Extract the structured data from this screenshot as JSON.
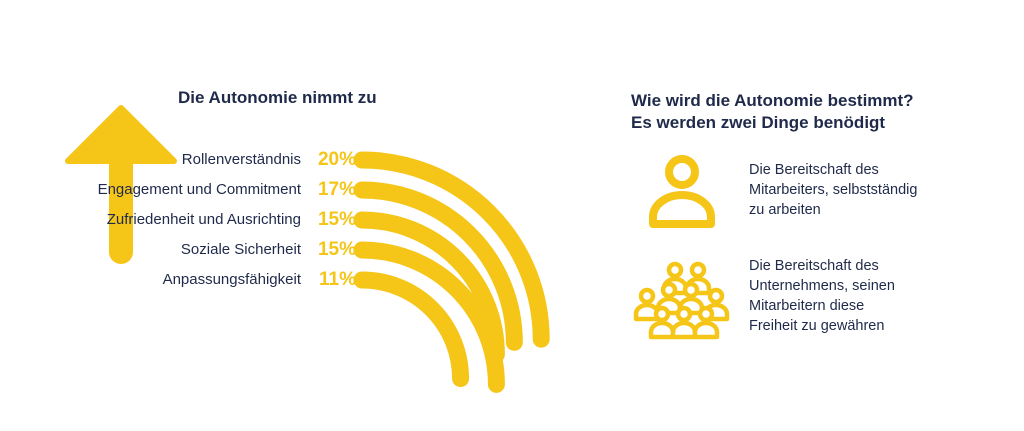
{
  "colors": {
    "accent": "#f5c518",
    "text": "#1f2a4a",
    "background": "#ffffff"
  },
  "left_panel": {
    "title": "Die Autonomie nimmt zu"
  },
  "chart_data": {
    "type": "bar",
    "title": "Die Autonomie nimmt zu",
    "categories": [
      "Rollenverständnis",
      "Engagement und Commitment",
      "Zufriedenheit und Ausrichting",
      "Soziale Sicherheit",
      "Anpassungsfähigkeit"
    ],
    "values": [
      20,
      17,
      15,
      15,
      11
    ],
    "value_labels": [
      "20%",
      "17%",
      "15%",
      "15%",
      "11%"
    ],
    "unit": "%",
    "style": "quarter-arc bars",
    "grid": false,
    "legend": "none"
  },
  "right_panel": {
    "title_lines": [
      "Wie wird die Autonomie bestimmt?",
      "Es werden zwei Dinge benödigt"
    ],
    "items": [
      {
        "icon": "person-icon",
        "lines": [
          "Die Bereitschaft des",
          "Mitarbeiters, selbstständig",
          "zu arbeiten"
        ]
      },
      {
        "icon": "group-icon",
        "lines": [
          "Die Bereitschaft des",
          "Unternehmens, seinen",
          "Mitarbeitern diese",
          "Freiheit zu gewähren"
        ]
      }
    ]
  }
}
